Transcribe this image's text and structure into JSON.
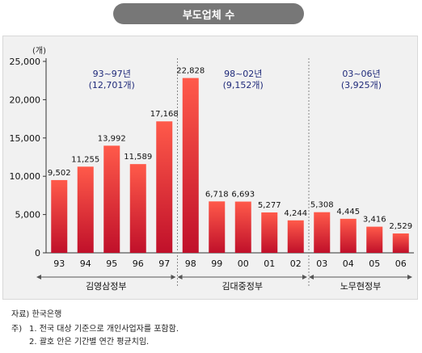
{
  "header": {
    "title": "부도업체 수"
  },
  "chart_data": {
    "type": "bar",
    "unit_label": "(개)",
    "ylim": [
      0,
      25000
    ],
    "yticks": [
      "0",
      "5,000",
      "10,000",
      "15,000",
      "20,000",
      "25,000"
    ],
    "ytick_values": [
      0,
      5000,
      10000,
      15000,
      20000,
      25000
    ],
    "categories": [
      "93",
      "94",
      "95",
      "96",
      "97",
      "98",
      "99",
      "00",
      "01",
      "02",
      "03",
      "04",
      "05",
      "06"
    ],
    "values": [
      9502,
      11255,
      13992,
      11589,
      17168,
      22828,
      6718,
      6693,
      5277,
      4244,
      5308,
      4445,
      3416,
      2529
    ],
    "value_labels": [
      "9,502",
      "11,255",
      "13,992",
      "11,589",
      "17,168",
      "22,828",
      "6,718",
      "6,693",
      "5,277",
      "4,244",
      "5,308",
      "4,445",
      "3,416",
      "2,529"
    ],
    "groups": [
      {
        "name": "김영삼정부",
        "period": "93~97년",
        "avg": "(12,701개)",
        "start": 0,
        "end": 4
      },
      {
        "name": "김대중정부",
        "period": "98~02년",
        "avg": "(9,152개)",
        "start": 5,
        "end": 9
      },
      {
        "name": "노무현정부",
        "period": "03~06년",
        "avg": "(3,925개)",
        "start": 10,
        "end": 13
      }
    ],
    "colors": {
      "bar_top": "#ff5a4a",
      "bar_bottom": "#c0102a",
      "group_text": "#1f2a7a"
    }
  },
  "footer": {
    "source": "자료) 한국은행",
    "note_label": "주)",
    "note_1": "1. 전국 대상 기준으로 개인사업자를 포함함.",
    "note_2": "2. 괄호 안은 기간별 연간 평균치임."
  }
}
